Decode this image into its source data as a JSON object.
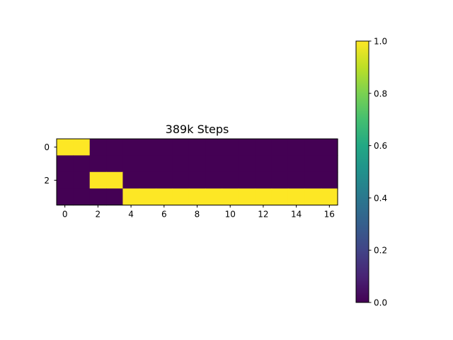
{
  "chart_data": {
    "type": "heatmap",
    "title": "389k Steps",
    "xlabel": "",
    "ylabel": "",
    "rows": 4,
    "cols": 17,
    "values": [
      [
        1,
        1,
        0,
        0,
        0,
        0,
        0,
        0,
        0,
        0,
        0,
        0,
        0,
        0,
        0,
        0,
        0
      ],
      [
        0,
        0,
        0,
        0,
        0,
        0,
        0,
        0,
        0,
        0,
        0,
        0,
        0,
        0,
        0,
        0,
        0
      ],
      [
        0,
        0,
        1,
        1,
        0,
        0,
        0,
        0,
        0,
        0,
        0,
        0,
        0,
        0,
        0,
        0,
        0
      ],
      [
        0,
        0,
        0,
        0,
        1,
        1,
        1,
        1,
        1,
        1,
        1,
        1,
        1,
        1,
        1,
        1,
        1
      ]
    ],
    "x_ticks": [
      0,
      2,
      4,
      6,
      8,
      10,
      12,
      14,
      16
    ],
    "x_tick_labels": [
      "0",
      "2",
      "4",
      "6",
      "8",
      "10",
      "12",
      "14",
      "16"
    ],
    "y_ticks": [
      0,
      2
    ],
    "y_tick_labels": [
      "0",
      "2"
    ],
    "colormap": "viridis",
    "color_low": "#440154",
    "color_high": "#fde725",
    "colorbar": {
      "range": [
        0.0,
        1.0
      ],
      "ticks": [
        0.0,
        0.2,
        0.4,
        0.6,
        0.8,
        1.0
      ],
      "tick_labels": [
        "0.0",
        "0.2",
        "0.4",
        "0.6",
        "0.8",
        "1.0"
      ]
    }
  }
}
